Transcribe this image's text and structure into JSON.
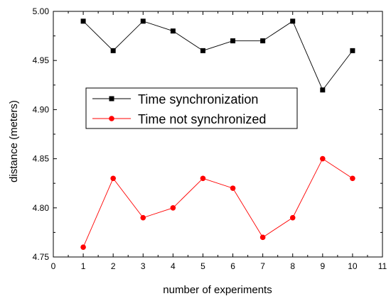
{
  "chart_data": {
    "type": "line",
    "title": "",
    "xlabel": "number of experiments",
    "ylabel": "distance (meters)",
    "xlim": [
      0,
      11
    ],
    "ylim": [
      4.75,
      5.0
    ],
    "x_ticks": [
      "0",
      "1",
      "2",
      "3",
      "4",
      "5",
      "6",
      "7",
      "8",
      "9",
      "10",
      "11"
    ],
    "y_ticks": [
      "4.75",
      "4.80",
      "4.85",
      "4.90",
      "4.95",
      "5.00"
    ],
    "grid": false,
    "legend_position": "center-left",
    "x": [
      1,
      2,
      3,
      4,
      5,
      6,
      7,
      8,
      9,
      10
    ],
    "series": [
      {
        "name": "Time synchronization",
        "color": "#000000",
        "marker": "square",
        "values": [
          4.99,
          4.96,
          4.99,
          4.98,
          4.96,
          4.97,
          4.97,
          4.99,
          4.92,
          4.96
        ]
      },
      {
        "name": "Time not synchronized",
        "color": "#ff0000",
        "marker": "circle",
        "values": [
          4.76,
          4.83,
          4.79,
          4.8,
          4.83,
          4.82,
          4.77,
          4.79,
          4.85,
          4.83
        ]
      }
    ]
  }
}
